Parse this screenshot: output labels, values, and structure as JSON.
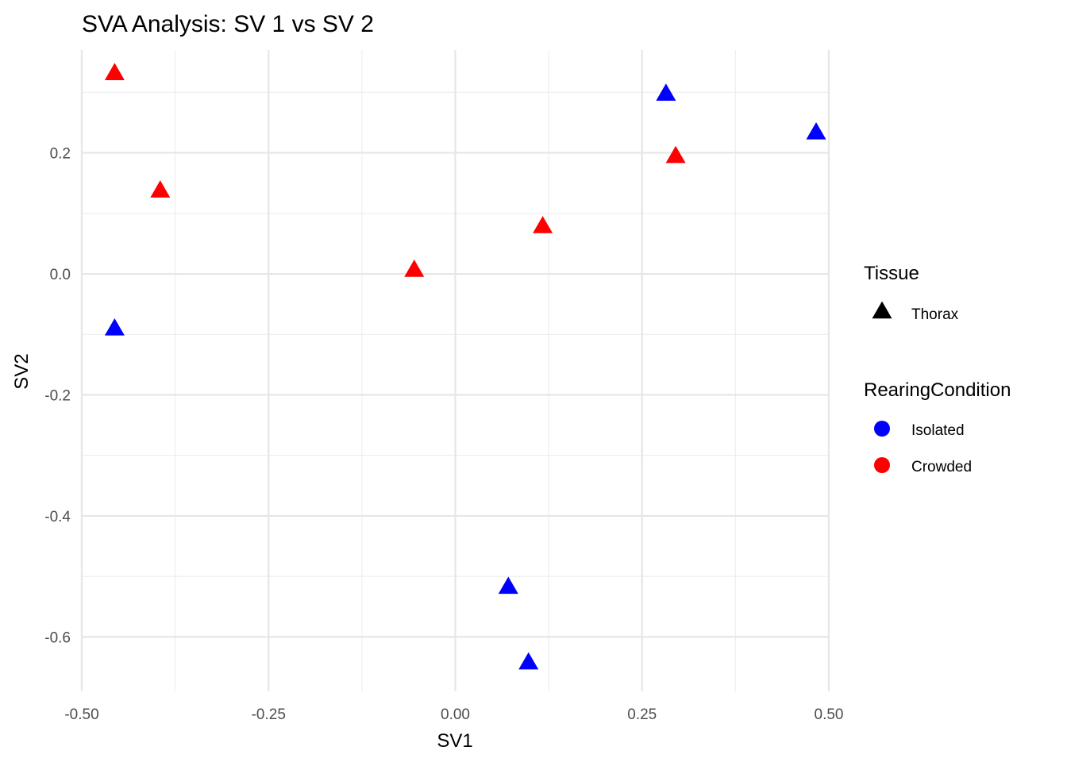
{
  "chart_data": {
    "type": "scatter",
    "title": "SVA Analysis: SV 1  vs SV 2",
    "xlabel": "SV1",
    "ylabel": "SV2",
    "xlim": [
      -0.5,
      0.5
    ],
    "ylim": [
      -0.69,
      0.37
    ],
    "x_ticks": [
      -0.5,
      -0.25,
      0.0,
      0.25,
      0.5
    ],
    "x_tick_labels": [
      "-0.50",
      "-0.25",
      "0.00",
      "0.25",
      "0.50"
    ],
    "y_ticks": [
      -0.6,
      -0.4,
      -0.2,
      0.0,
      0.2
    ],
    "y_tick_labels": [
      "-0.6",
      "-0.4",
      "-0.2",
      "0.0",
      "0.2"
    ],
    "grid": true,
    "legend_position": "right",
    "legends": [
      {
        "title": "Tissue",
        "entries": [
          {
            "label": "Thorax",
            "shape": "triangle",
            "color": "#000000"
          }
        ]
      },
      {
        "title": "RearingCondition",
        "entries": [
          {
            "label": "Isolated",
            "shape": "circle",
            "color": "#0000ff"
          },
          {
            "label": "Crowded",
            "shape": "circle",
            "color": "#ff0000"
          }
        ]
      }
    ],
    "series": [
      {
        "name": "Isolated",
        "color": "#0000ff",
        "shape": "triangle",
        "points": [
          {
            "x": 0.282,
            "y": 0.297
          },
          {
            "x": 0.483,
            "y": 0.233
          },
          {
            "x": -0.456,
            "y": -0.091
          },
          {
            "x": 0.071,
            "y": -0.518
          },
          {
            "x": 0.098,
            "y": -0.643
          }
        ]
      },
      {
        "name": "Crowded",
        "color": "#ff0000",
        "shape": "triangle",
        "points": [
          {
            "x": -0.456,
            "y": 0.331
          },
          {
            "x": -0.395,
            "y": 0.137
          },
          {
            "x": 0.295,
            "y": 0.194
          },
          {
            "x": 0.117,
            "y": 0.078
          },
          {
            "x": -0.055,
            "y": 0.006
          }
        ]
      }
    ]
  }
}
